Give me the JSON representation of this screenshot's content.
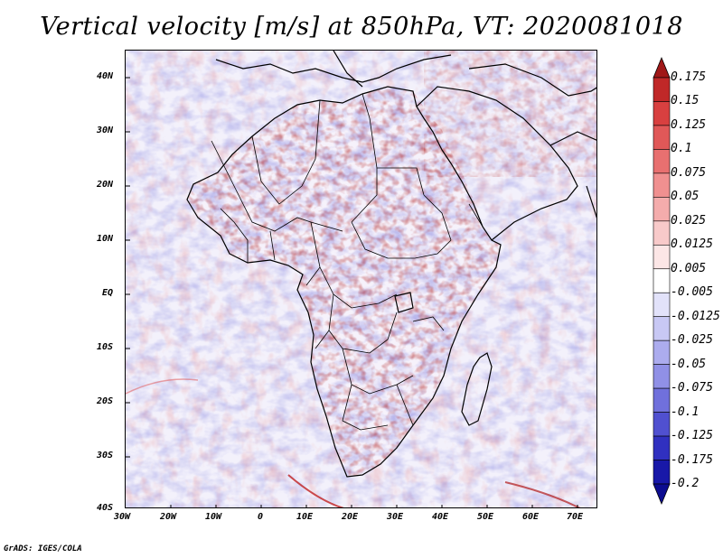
{
  "title": "Vertical velocity [m/s] at 850hPa, VT: 2020081018",
  "footer": "GrADS: IGES/COLA",
  "map": {
    "region": "Africa",
    "y_axis_labels": [
      "40N",
      "30N",
      "20N",
      "10N",
      "EQ",
      "10S",
      "20S",
      "30S",
      "40S"
    ],
    "x_axis_labels": [
      "30W",
      "20W",
      "10W",
      "0",
      "10E",
      "20E",
      "30E",
      "40E",
      "50E",
      "60E",
      "70E"
    ]
  },
  "colorbar": {
    "labels": [
      "0.175",
      "0.15",
      "0.125",
      "0.1",
      "0.075",
      "0.05",
      "0.025",
      "0.0125",
      "0.005",
      "-0.005",
      "-0.0125",
      "-0.025",
      "-0.05",
      "-0.075",
      "-0.1",
      "-0.125",
      "-0.175",
      "-0.2"
    ],
    "colors": [
      "#a01818",
      "#c02828",
      "#d84040",
      "#e05858",
      "#e87070",
      "#f09090",
      "#f4acac",
      "#f8caca",
      "#fce6e6",
      "#ffffff",
      "#e2e2fa",
      "#c8c8f4",
      "#acacee",
      "#9090e6",
      "#7070dc",
      "#5050d0",
      "#3030c0",
      "#1818a8",
      "#0c0c90"
    ]
  }
}
